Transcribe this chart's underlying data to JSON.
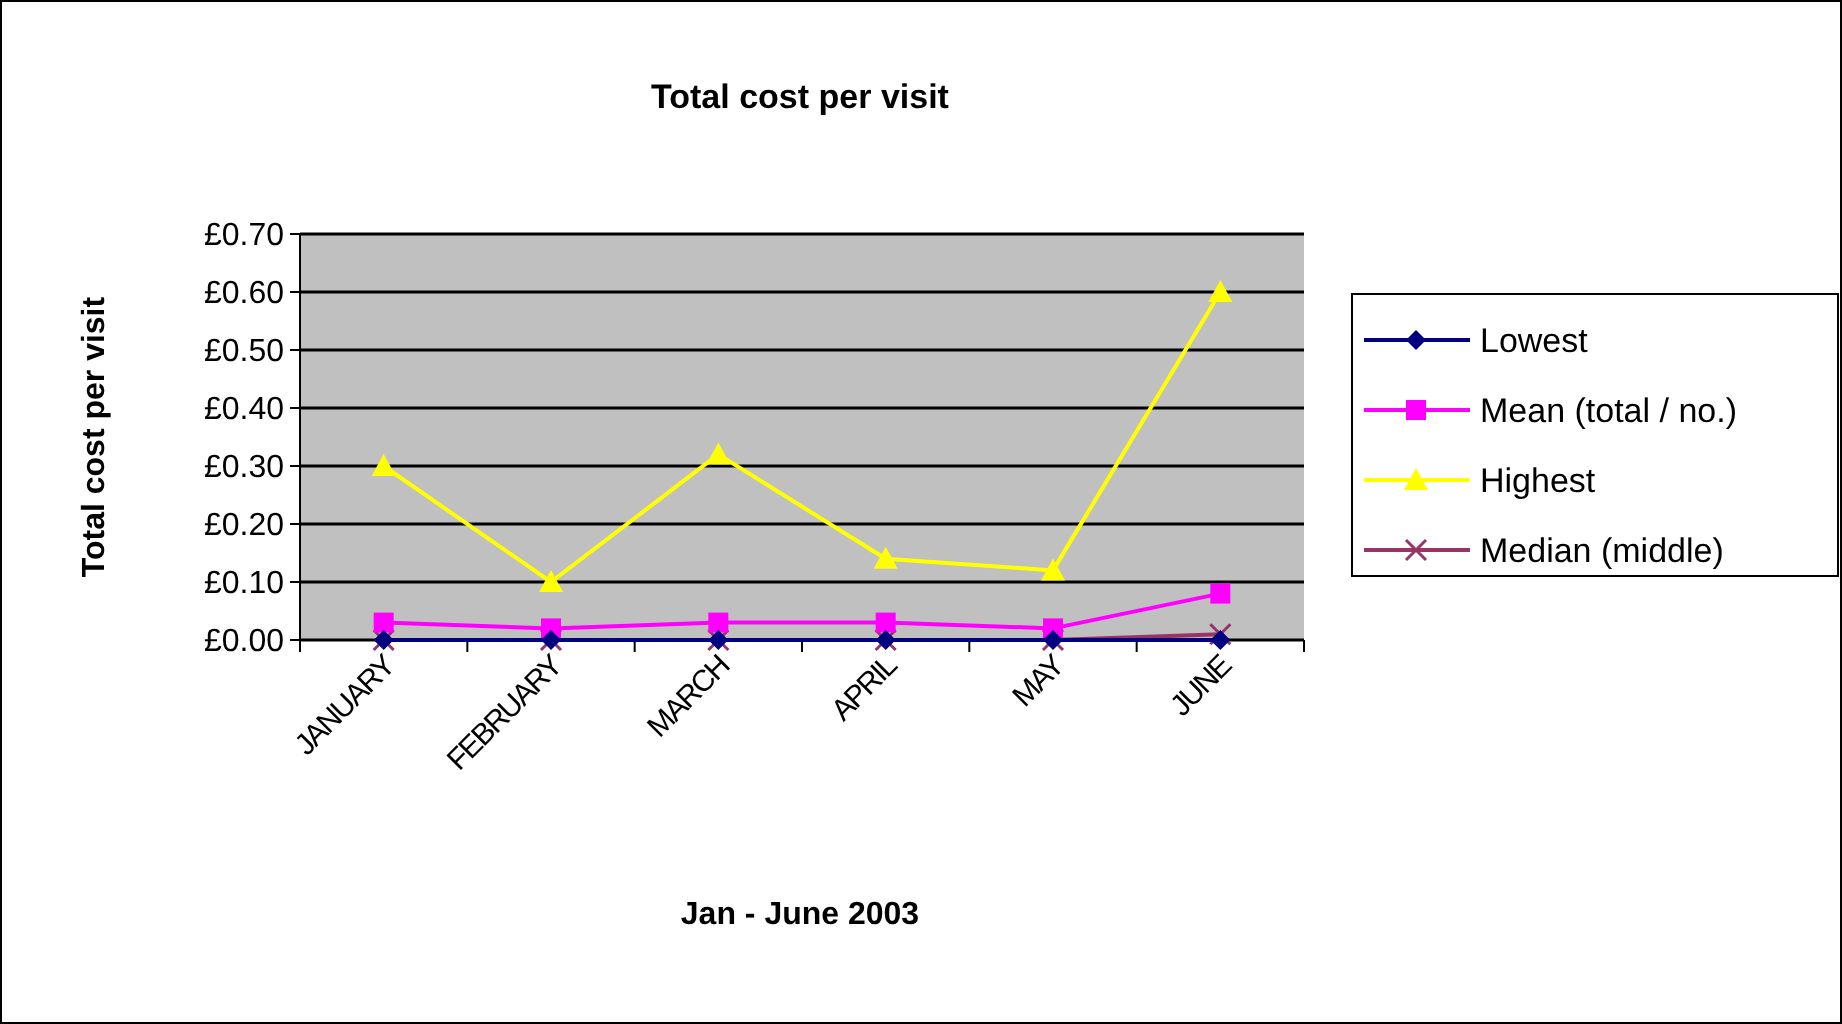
{
  "chart_data": {
    "type": "line",
    "title": "Total cost per visit",
    "xlabel": "Jan - June 2003",
    "ylabel": "Total cost per visit",
    "categories": [
      "JANUARY",
      "FEBRUARY",
      "MARCH",
      "APRIL",
      "MAY",
      "JUNE"
    ],
    "series": [
      {
        "name": "Lowest",
        "color": "#000080",
        "marker": "diamond",
        "values": [
          0,
          0,
          0,
          0,
          0,
          0
        ]
      },
      {
        "name": "Mean (total / no.)",
        "color": "#ff00ff",
        "marker": "square",
        "values": [
          0.03,
          0.02,
          0.03,
          0.03,
          0.02,
          0.08
        ]
      },
      {
        "name": "Highest",
        "color": "#ffff00",
        "marker": "triangle",
        "values": [
          0.3,
          0.1,
          0.32,
          0.14,
          0.12,
          0.6
        ]
      },
      {
        "name": "Median (middle)",
        "color": "#993366",
        "marker": "cross",
        "values": [
          0,
          0,
          0,
          0,
          0,
          0.01
        ]
      }
    ],
    "ylim": [
      0,
      0.7
    ],
    "yticks": [
      {
        "value": 0,
        "label": "£0.00"
      },
      {
        "value": 0.1,
        "label": "£0.10"
      },
      {
        "value": 0.2,
        "label": "£0.20"
      },
      {
        "value": 0.3,
        "label": "£0.30"
      },
      {
        "value": 0.4,
        "label": "£0.40"
      },
      {
        "value": 0.5,
        "label": "£0.50"
      },
      {
        "value": 0.6,
        "label": "£0.60"
      },
      {
        "value": 0.7,
        "label": "£0.70"
      }
    ],
    "grid": "y",
    "legend": "right",
    "line_style": "solid"
  }
}
